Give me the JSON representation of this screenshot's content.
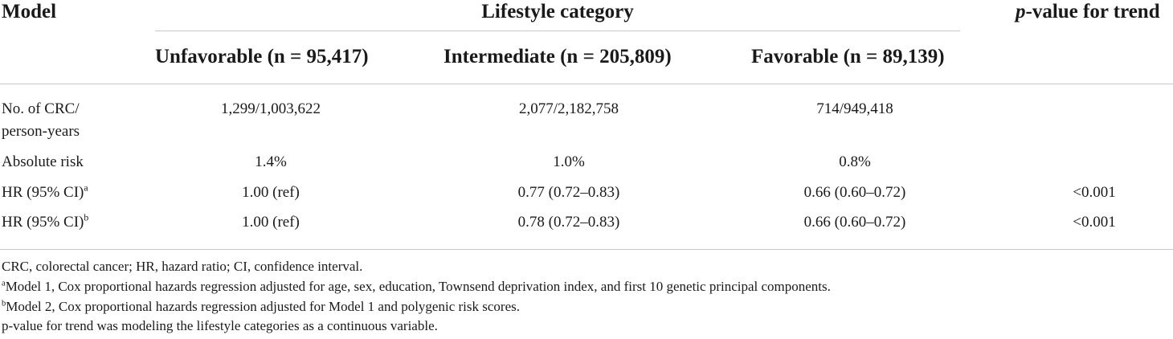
{
  "table": {
    "headers": {
      "model": "Model",
      "group": "Lifestyle category",
      "trend_italic": "p",
      "trend_rest": "-value for trend",
      "columns": [
        "Unfavorable (n = 95,417)",
        "Intermediate (n = 205,809)",
        "Favorable (n = 89,139)"
      ]
    },
    "rows": [
      {
        "label_line1": "No. of CRC/",
        "label_line2": "person-years",
        "cells": [
          "1,299/1,003,622",
          "2,077/2,182,758",
          "714/949,418"
        ],
        "trend": ""
      },
      {
        "label": "Absolute risk",
        "cells": [
          "1.4%",
          "1.0%",
          "0.8%"
        ],
        "trend": ""
      },
      {
        "label": "HR (95% CI)",
        "label_sup": "a",
        "cells": [
          "1.00 (ref)",
          "0.77 (0.72–0.83)",
          "0.66 (0.60–0.72)"
        ],
        "trend": "<0.001"
      },
      {
        "label": "HR (95% CI)",
        "label_sup": "b",
        "cells": [
          "1.00 (ref)",
          "0.78 (0.72–0.83)",
          "0.66 (0.60–0.72)"
        ],
        "trend": "<0.001"
      }
    ],
    "footnotes": {
      "abbrev": "CRC, colorectal cancer; HR, hazard ratio; CI, confidence interval.",
      "a_mark": "a",
      "a_text": "Model 1, Cox proportional hazards regression adjusted for age, sex, education, Townsend deprivation index, and first 10 genetic principal components.",
      "b_mark": "b",
      "b_text": "Model 2, Cox proportional hazards regression adjusted for Model 1 and polygenic risk scores.",
      "trend_note": "p-value for trend was modeling the lifestyle categories as a continuous variable."
    }
  },
  "colors": {
    "text": "#1a1a1a",
    "rule": "#c8c8c8"
  }
}
